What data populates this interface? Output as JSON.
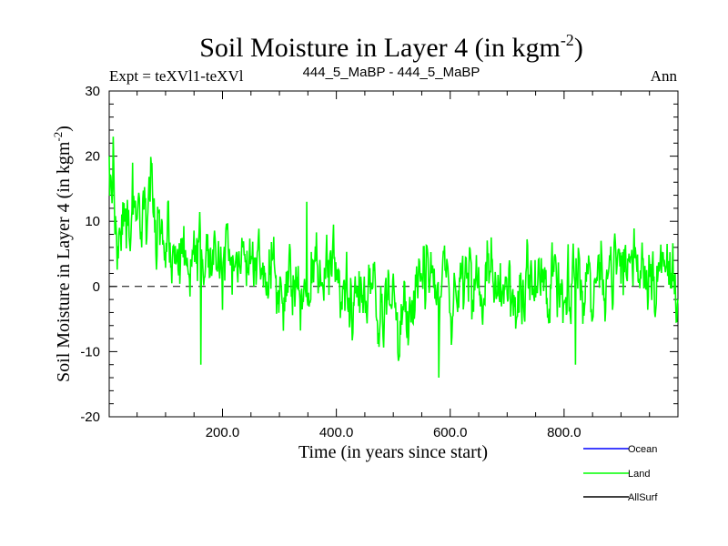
{
  "chart_data": {
    "type": "line",
    "title": "Soil Moisture in Layer 4 (in kgm",
    "title_sup": "-2",
    "title_close": ")",
    "subtitle_left": "Expt = teXVl1-teXVl",
    "subtitle_center": "444_5_MaBP - 444_5_MaBP",
    "subtitle_right": "Ann",
    "xlabel": "Time (in years since start)",
    "ylabel": "Soil Moisture in Layer 4 (in kgm",
    "ylabel_sup": "-2",
    "ylabel_close": ")",
    "xlim": [
      1,
      1000
    ],
    "ylim": [
      -20,
      30
    ],
    "xticks": [
      200,
      400,
      600,
      800
    ],
    "xtick_labels": [
      "200.0",
      "400.0",
      "600.0",
      "800.0"
    ],
    "yticks": [
      -20,
      -10,
      0,
      10,
      20,
      30
    ],
    "ytick_labels": [
      "-20",
      "-10",
      "0",
      "10",
      "20",
      "30"
    ],
    "reference_line": 0,
    "series": [
      {
        "name": "Ocean",
        "color": "#0000ff",
        "values": []
      },
      {
        "name": "Land",
        "color": "#00ff00",
        "x_start": 1,
        "x_step": 25,
        "values": [
          15.0,
          7.5,
          8.0,
          13.0,
          6.5,
          3.0,
          4.0,
          5.5,
          2.0,
          3.5,
          5.0,
          2.0,
          0.5,
          0.0,
          1.5,
          2.5,
          1.5,
          -1.0,
          0.0,
          -2.5,
          -3.5,
          -2.0,
          0.5,
          0.0,
          -0.5,
          0.5,
          -0.5,
          0.0,
          0.0,
          -2.0,
          -1.0,
          1.5,
          2.0,
          1.0,
          0.5,
          3.5,
          3.0,
          4.5,
          3.5,
          2.0
        ],
        "highlights": [
          {
            "x": 1,
            "y": 20
          },
          {
            "x": 8,
            "y": 23
          },
          {
            "x": 42,
            "y": 19
          },
          {
            "x": 162,
            "y": -12
          },
          {
            "x": 348,
            "y": 13
          },
          {
            "x": 580,
            "y": -14
          },
          {
            "x": 820,
            "y": -12
          }
        ]
      },
      {
        "name": "AllSurf",
        "color": "#000000",
        "values": []
      }
    ]
  }
}
